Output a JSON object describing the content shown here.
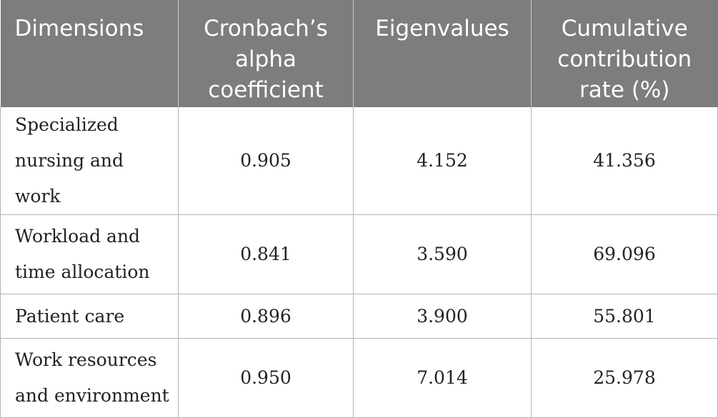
{
  "table": {
    "headers": [
      {
        "lines": [
          "Dimensions"
        ]
      },
      {
        "lines": [
          "Cronbach’s",
          "alpha",
          "coefficient"
        ]
      },
      {
        "lines": [
          "Eigenvalues"
        ]
      },
      {
        "lines": [
          "Cumulative",
          "contribution",
          "rate (%)"
        ]
      }
    ],
    "rows": [
      {
        "dimension_lines": [
          "Specialized",
          "nursing and work"
        ],
        "alpha": "0.905",
        "eigenvalue": "4.152",
        "cumulative": "41.356"
      },
      {
        "dimension_lines": [
          "Workload and",
          "time allocation"
        ],
        "alpha": "0.841",
        "eigenvalue": "3.590",
        "cumulative": "69.096"
      },
      {
        "dimension_lines": [
          "Patient care"
        ],
        "alpha": "0.896",
        "eigenvalue": "3.900",
        "cumulative": "55.801"
      },
      {
        "dimension_lines": [
          "Work resources",
          "and environment"
        ],
        "alpha": "0.950",
        "eigenvalue": "7.014",
        "cumulative": "25.978"
      }
    ]
  }
}
